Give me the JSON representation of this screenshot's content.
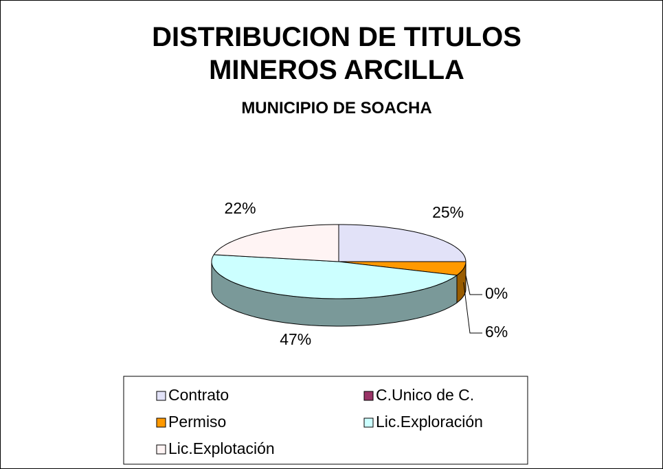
{
  "chart_data": {
    "type": "pie",
    "title": "DISTRIBUCION DE TITULOS MINEROS ARCILLA",
    "subtitle": "MUNICIPIO DE SOACHA",
    "categories": [
      "Contrato",
      "C.Unico de C.",
      "Permiso",
      "Lic.Exploración",
      "Lic.Explotación"
    ],
    "values": [
      25,
      0,
      6,
      47,
      22
    ],
    "value_labels": [
      "25%",
      "0%",
      "6%",
      "47%",
      "22%"
    ],
    "colors": [
      "#e2e2f8",
      "#993366",
      "#ff9900",
      "#ccffff",
      "#fff4f4"
    ],
    "legend": "bottom"
  }
}
